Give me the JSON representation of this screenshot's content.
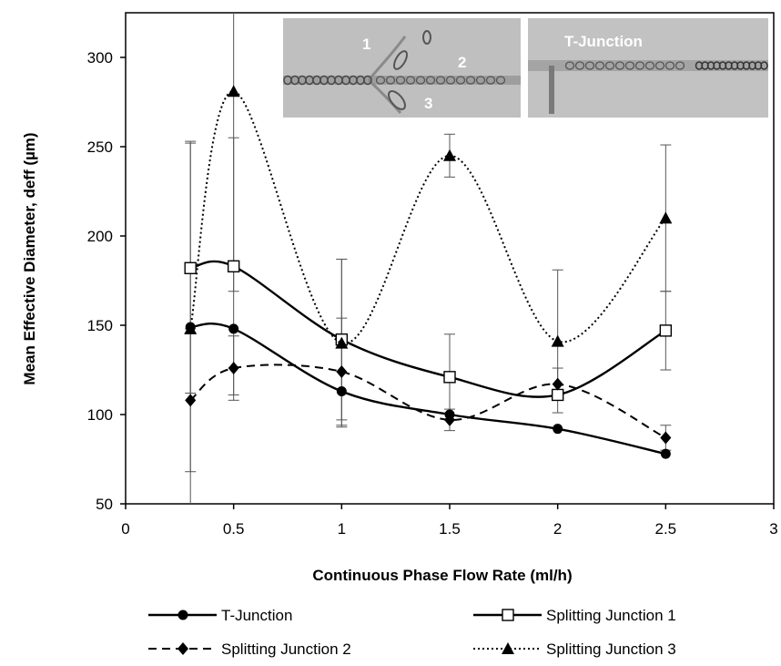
{
  "chart_data": {
    "type": "line",
    "title": "",
    "xlabel": "Continuous Phase Flow Rate (ml/h)",
    "ylabel": "Mean Effective Diameter, deff (µm)",
    "xlim": [
      0,
      3
    ],
    "ylim": [
      50,
      325
    ],
    "xticks": [
      0,
      0.5,
      1,
      1.5,
      2,
      2.5,
      3
    ],
    "xtick_labels": [
      "0",
      "0.5",
      "1",
      "1.5",
      "2",
      "2.5",
      "3"
    ],
    "yticks": [
      50,
      100,
      150,
      200,
      250,
      300
    ],
    "ytick_labels": [
      "50",
      "100",
      "150",
      "200",
      "250",
      "300"
    ],
    "grid": false,
    "legend_position": "bottom",
    "x": [
      0.3,
      0.5,
      1,
      1.5,
      2,
      2.5
    ],
    "series": [
      {
        "name": "T-Junction",
        "marker": "circle",
        "line": "solid",
        "values": [
          149,
          148,
          113,
          100,
          92,
          78
        ],
        "errors": [
          0,
          0,
          0,
          0,
          0,
          0
        ]
      },
      {
        "name": "Splitting Junction 1",
        "marker": "open-square",
        "line": "solid",
        "values": [
          182,
          183,
          142,
          121,
          111,
          147
        ],
        "errors": [
          70,
          72,
          45,
          24,
          0,
          22
        ]
      },
      {
        "name": "Splitting Junction 2",
        "marker": "diamond",
        "line": "dashed",
        "values": [
          108,
          126,
          124,
          97,
          117,
          87
        ],
        "errors": [
          40,
          18,
          30,
          6,
          9,
          7
        ]
      },
      {
        "name": "Splitting Junction 3",
        "marker": "triangle",
        "line": "dotted",
        "values": [
          148,
          281,
          140,
          245,
          141,
          210
        ],
        "errors": [
          105,
          112,
          47,
          12,
          40,
          41
        ]
      }
    ],
    "inset_labels": {
      "left": [
        "1",
        "2",
        "3"
      ],
      "right": "T-Junction"
    }
  }
}
